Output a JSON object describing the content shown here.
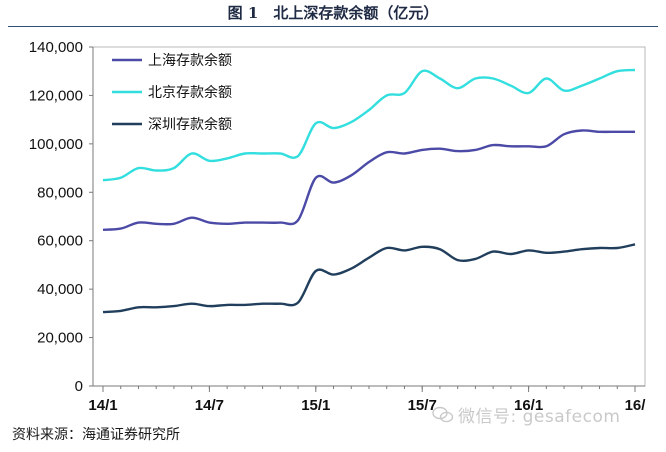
{
  "title": "图 1　北上深存款余额（亿元）",
  "source": "资料来源：海通证券研究所",
  "watermark": "微信号: gesafecom",
  "chart_data": {
    "type": "line",
    "ylim": [
      0,
      140000
    ],
    "yticks": [
      0,
      20000,
      40000,
      60000,
      80000,
      100000,
      120000,
      140000
    ],
    "ytick_labels": [
      "0",
      "20,000",
      "40,000",
      "60,000",
      "80,000",
      "100,000",
      "120,000",
      "140,000"
    ],
    "xtick_labels": [
      "14/1",
      "14/7",
      "15/1",
      "15/7",
      "16/1",
      "16/"
    ],
    "xtick_index": [
      0,
      6,
      12,
      18,
      24,
      30
    ],
    "legend_position": "top-left",
    "grid": false,
    "x": [
      "14/1",
      "14/2",
      "14/3",
      "14/4",
      "14/5",
      "14/6",
      "14/7",
      "14/8",
      "14/9",
      "14/10",
      "14/11",
      "14/12",
      "15/1",
      "15/2",
      "15/3",
      "15/4",
      "15/5",
      "15/6",
      "15/7",
      "15/8",
      "15/9",
      "15/10",
      "15/11",
      "15/12",
      "16/1",
      "16/2",
      "16/3",
      "16/4",
      "16/5",
      "16/6",
      "16/7"
    ],
    "series": [
      {
        "name": "上海存款余额",
        "color": "#4b4aa6",
        "values": [
          64500,
          65000,
          67500,
          67000,
          67000,
          69500,
          67500,
          67000,
          67500,
          67500,
          67500,
          68500,
          86000,
          84000,
          87000,
          92500,
          96500,
          96000,
          97500,
          98000,
          97000,
          97500,
          99500,
          99000,
          99000,
          99000,
          104000,
          105500,
          105000,
          105000,
          105000
        ]
      },
      {
        "name": "北京存款余额",
        "color": "#33dede",
        "values": [
          85000,
          86000,
          90000,
          89000,
          90000,
          96000,
          93000,
          94000,
          96000,
          96000,
          96000,
          95000,
          108500,
          106500,
          109000,
          114000,
          120000,
          121000,
          130000,
          127000,
          123000,
          127000,
          127000,
          124000,
          121000,
          127000,
          122000,
          124000,
          127000,
          130000,
          130500
        ]
      },
      {
        "name": "深圳存款余额",
        "color": "#213f5c",
        "values": [
          30500,
          31000,
          32500,
          32500,
          33000,
          34000,
          33000,
          33500,
          33500,
          34000,
          34000,
          34500,
          47500,
          46000,
          48500,
          53000,
          57000,
          56000,
          57500,
          56500,
          52000,
          52500,
          55500,
          54500,
          56000,
          55000,
          55500,
          56500,
          57000,
          57000,
          58500
        ]
      }
    ]
  }
}
